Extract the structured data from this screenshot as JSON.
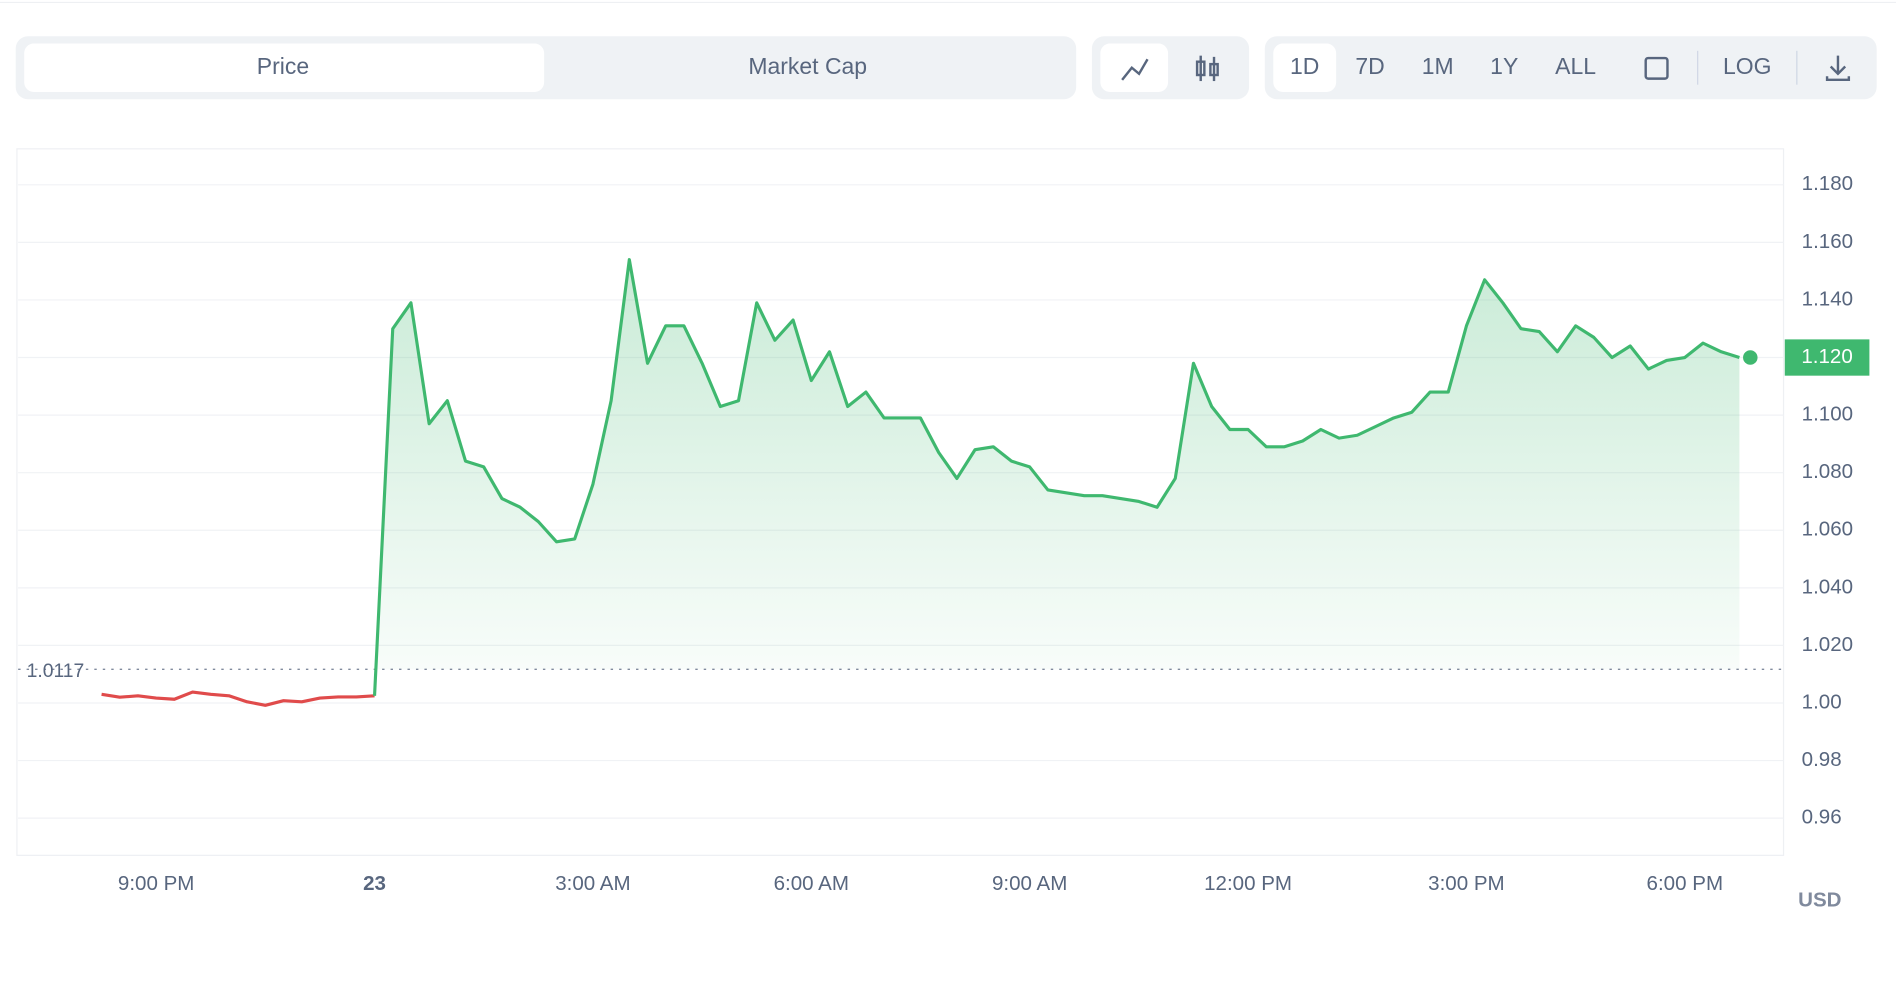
{
  "toolbar": {
    "tabs": [
      "Price",
      "Market Cap"
    ],
    "ranges": [
      "1D",
      "7D",
      "1M",
      "1Y",
      "ALL"
    ],
    "scale": "LOG"
  },
  "currency": "USD",
  "chart_data": {
    "type": "line",
    "categories": [
      null,
      null,
      null,
      "9:00 PM",
      null,
      null,
      null,
      null,
      null,
      null,
      null,
      null,
      null,
      null,
      null,
      "23",
      null,
      null,
      null,
      null,
      null,
      null,
      null,
      null,
      null,
      null,
      null,
      "3:00 AM",
      null,
      null,
      null,
      null,
      null,
      null,
      null,
      null,
      null,
      null,
      null,
      "6:00 AM",
      null,
      null,
      null,
      null,
      null,
      null,
      null,
      null,
      null,
      null,
      null,
      "9:00 AM",
      null,
      null,
      null,
      null,
      null,
      null,
      null,
      null,
      null,
      null,
      null,
      "12:00 PM",
      null,
      null,
      null,
      null,
      null,
      null,
      null,
      null,
      null,
      null,
      null,
      "3:00 PM",
      null,
      null,
      null,
      null,
      null,
      null,
      null,
      null,
      null,
      null,
      null,
      "6:00 PM",
      null,
      null,
      null
    ],
    "values": [
      1.003,
      1.002,
      1.0025,
      1.0017,
      1.0013,
      1.0038,
      1.003,
      1.0025,
      1.0004,
      0.9992,
      1.0008,
      1.0004,
      1.0017,
      1.0021,
      1.0021,
      1.0025,
      1.13,
      1.139,
      1.097,
      1.105,
      1.084,
      1.082,
      1.071,
      1.068,
      1.063,
      1.056,
      1.057,
      1.076,
      1.105,
      1.154,
      1.118,
      1.131,
      1.131,
      1.118,
      1.103,
      1.105,
      1.139,
      1.126,
      1.133,
      1.112,
      1.122,
      1.103,
      1.108,
      1.099,
      1.099,
      1.099,
      1.087,
      1.078,
      1.088,
      1.089,
      1.084,
      1.082,
      1.074,
      1.073,
      1.072,
      1.072,
      1.071,
      1.07,
      1.068,
      1.078,
      1.118,
      1.103,
      1.095,
      1.095,
      1.089,
      1.089,
      1.091,
      1.095,
      1.092,
      1.093,
      1.096,
      1.099,
      1.101,
      1.108,
      1.108,
      1.131,
      1.147,
      1.139,
      1.13,
      1.129,
      1.122,
      1.131,
      1.127,
      1.12,
      1.124,
      1.116,
      1.119,
      1.12,
      1.125,
      1.122,
      1.12
    ],
    "up_color": "#3fb86f",
    "down_color": "#e04b4b",
    "baseline": 1.0117,
    "current_price": {
      "value": 1.12,
      "label": "1.120"
    },
    "ylim": [
      0.9475,
      1.1925
    ],
    "yticks": [
      0.96,
      0.98,
      {
        "value": 1.0,
        "label": "1.00"
      },
      {
        "value": 1.02,
        "label": "1.020"
      },
      {
        "value": 1.04,
        "label": "1.040"
      },
      {
        "value": 1.06,
        "label": "1.060"
      },
      {
        "value": 1.08,
        "label": "1.080"
      },
      {
        "value": 1.1,
        "label": "1.100"
      },
      {
        "value": 1.12,
        "label": "1.120"
      },
      {
        "value": 1.14,
        "label": "1.140"
      },
      {
        "value": 1.16,
        "label": "1.160"
      },
      {
        "value": 1.18,
        "label": "1.180"
      }
    ],
    "grid": true
  }
}
